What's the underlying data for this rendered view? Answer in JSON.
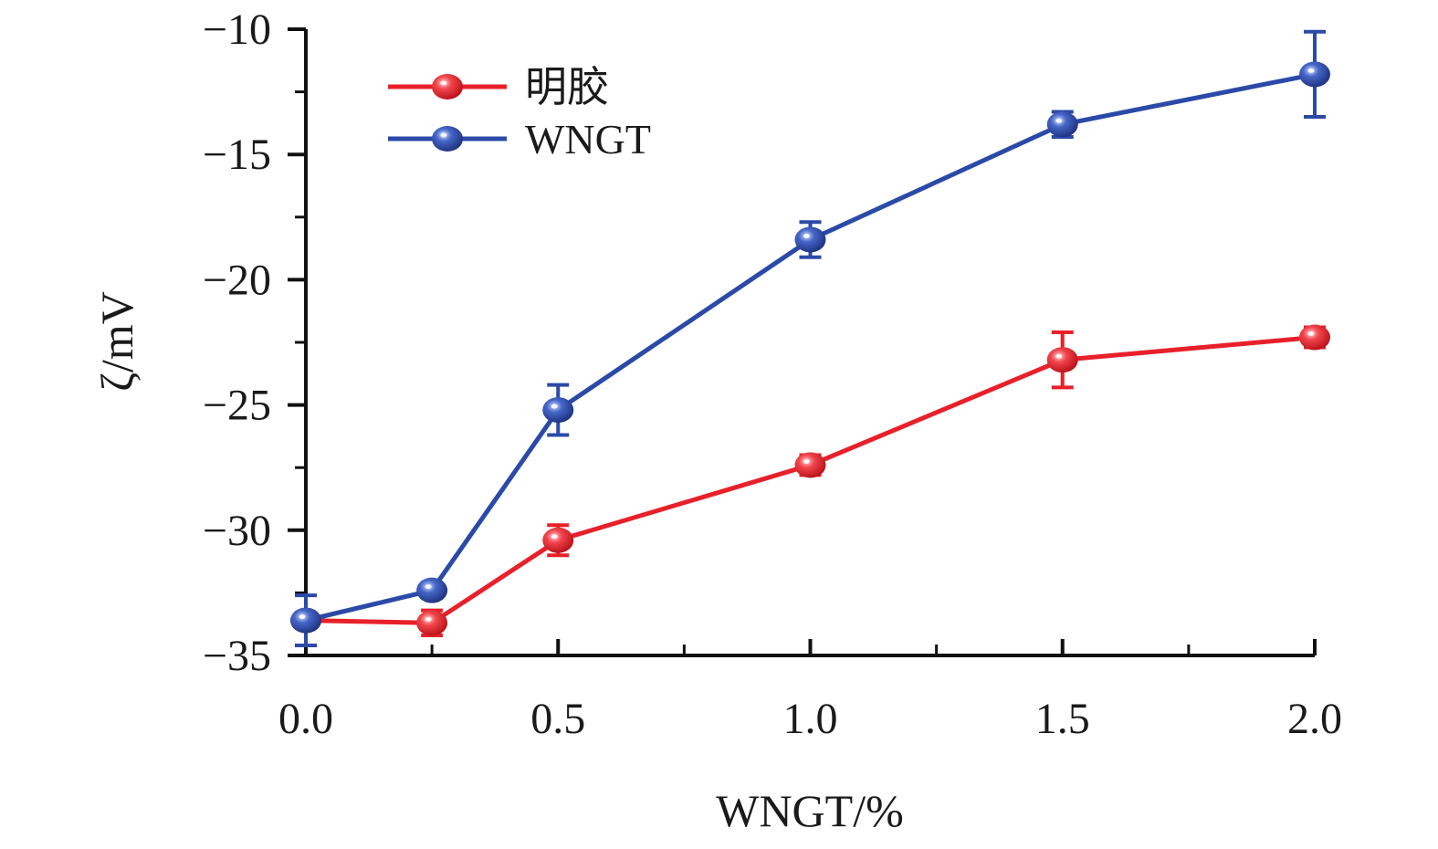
{
  "chart_data": {
    "type": "line",
    "title": "",
    "xlabel": "WNGT/%",
    "ylabel": "ζ/mV",
    "xlim": [
      0,
      2.0
    ],
    "ylim": [
      -35,
      -10
    ],
    "x_ticks": [
      "0.0",
      "0.5",
      "1.0",
      "1.5",
      "2.0"
    ],
    "y_ticks": [
      "−10",
      "−15",
      "−20",
      "−25",
      "−30",
      "−35"
    ],
    "x_tick_values": [
      0,
      0.5,
      1.0,
      1.5,
      2.0
    ],
    "y_tick_values": [
      -10,
      -15,
      -20,
      -25,
      -30,
      -35
    ],
    "legend_position": "top-left",
    "grid": false,
    "x": [
      0,
      0.25,
      0.5,
      1.0,
      1.5,
      2.0
    ],
    "series": [
      {
        "name": "明胶",
        "color": "#e8202a",
        "values": [
          -33.6,
          -33.7,
          -30.4,
          -27.4,
          -23.2,
          -22.3
        ],
        "errors": [
          0.3,
          0.5,
          0.6,
          0.4,
          1.1,
          0.4
        ]
      },
      {
        "name": "WNGT",
        "color": "#2b4aa8",
        "values": [
          -33.6,
          -32.4,
          -25.2,
          -18.4,
          -13.8,
          -11.8
        ],
        "errors": [
          1.0,
          0.3,
          1.0,
          0.7,
          0.5,
          1.7
        ]
      }
    ]
  }
}
